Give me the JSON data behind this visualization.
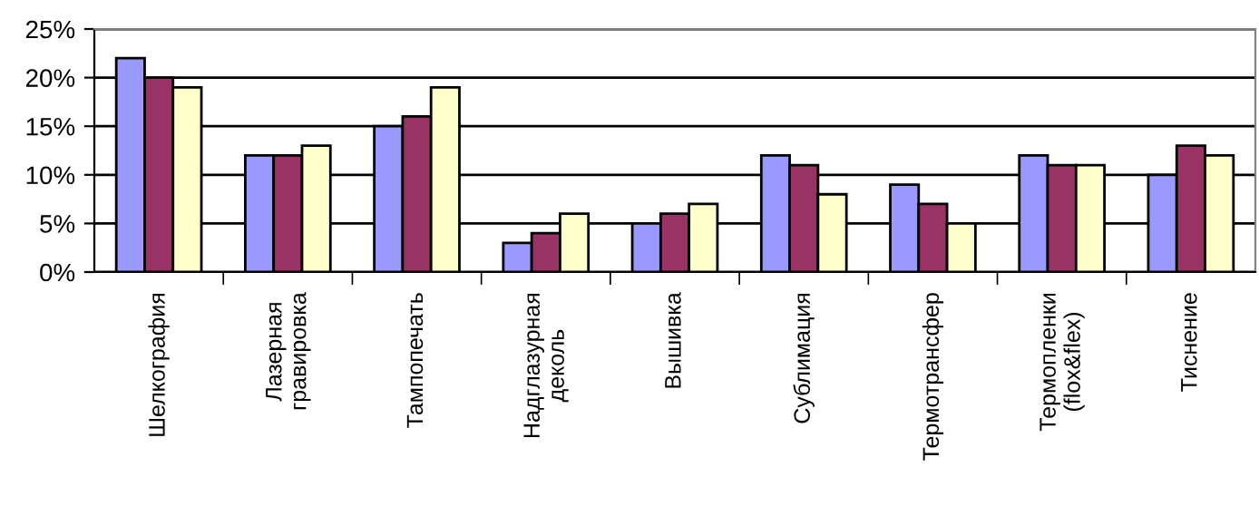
{
  "chart_data": {
    "type": "bar",
    "categories": [
      "Шелкография",
      "Лазерная\nгравировка",
      "Тампопечать",
      "Надглазурная\nдеколь",
      "Вышивка",
      "Сублимация",
      "Термотрансфер",
      "Термопленки\n(flox&flex)",
      "Тиснение"
    ],
    "series": [
      {
        "color": "#9999ff",
        "values": [
          22,
          12,
          15,
          3,
          5,
          12,
          9,
          12,
          10
        ]
      },
      {
        "color": "#993366",
        "values": [
          20,
          12,
          16,
          4,
          6,
          11,
          7,
          11,
          13
        ]
      },
      {
        "color": "#ffffcc",
        "values": [
          19,
          13,
          19,
          6,
          7,
          8,
          5,
          11,
          12
        ]
      }
    ],
    "ylim": [
      0,
      25
    ],
    "yticks": [
      {
        "value": 0,
        "label": "0%"
      },
      {
        "value": 5,
        "label": "5%"
      },
      {
        "value": 10,
        "label": "10%"
      },
      {
        "value": 15,
        "label": "15%"
      },
      {
        "value": 20,
        "label": "20%"
      },
      {
        "value": 25,
        "label": "25%"
      }
    ],
    "grid": "y",
    "legend": false
  }
}
